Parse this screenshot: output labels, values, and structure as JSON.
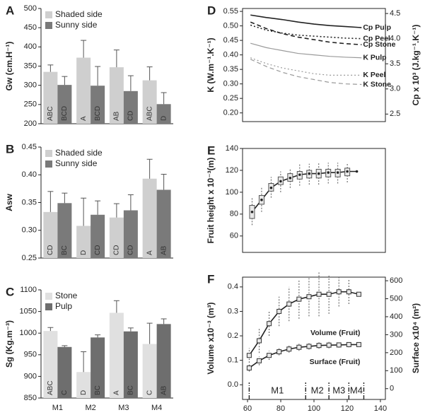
{
  "chart_data": [
    {
      "type": "bar",
      "panel": "A",
      "ylabel": "Gw (cm.H⁻¹)",
      "ylim": [
        200,
        500
      ],
      "yticks": [
        200,
        250,
        300,
        350,
        400,
        450,
        500
      ],
      "frame": false,
      "series": [
        {
          "name": "Shaded side",
          "color": "#cfcfcf",
          "values": [
            335,
            372,
            347,
            313
          ],
          "errors": [
            18,
            45,
            45,
            35
          ],
          "letters": [
            "ABC",
            "A",
            "AB",
            "ABC"
          ]
        },
        {
          "name": "Sunny side",
          "color": "#7a7a7a",
          "values": [
            301,
            299,
            285,
            251
          ],
          "errors": [
            22,
            50,
            40,
            30
          ],
          "letters": [
            "BCD",
            "BCD",
            "CD",
            "D"
          ]
        }
      ]
    },
    {
      "type": "bar",
      "panel": "B",
      "ylabel": "Asw",
      "ylim": [
        0.25,
        0.45
      ],
      "yticks": [
        0.25,
        {
          "value": 0.3,
          "label": "0.30"
        },
        0.35,
        {
          "value": 0.4,
          "label": "0.40"
        },
        0.45
      ],
      "frame": false,
      "series": [
        {
          "name": "Shaded side",
          "color": "#cfcfcf",
          "values": [
            0.333,
            0.308,
            0.323,
            0.393
          ],
          "errors": [
            0.037,
            0.05,
            0.025,
            0.035
          ],
          "letters": [
            "CD",
            "D",
            "CD",
            "A"
          ]
        },
        {
          "name": "Sunny side",
          "color": "#7a7a7a",
          "values": [
            0.349,
            0.328,
            0.336,
            0.373
          ],
          "errors": [
            0.018,
            0.025,
            0.028,
            0.028
          ],
          "letters": [
            "BC",
            "CD",
            "CD",
            "AB"
          ]
        }
      ]
    },
    {
      "type": "bar",
      "panel": "C",
      "ylabel": "Sg (Kg.m⁻³)",
      "ylim": [
        850,
        1100
      ],
      "yticks": [
        850,
        900,
        950,
        1000,
        1050,
        1100
      ],
      "frame": false,
      "categories": [
        "M1",
        "M2",
        "M3",
        "M4"
      ],
      "series": [
        {
          "name": "Stone",
          "color": "#e0e0e0",
          "values": [
            1005,
            910,
            1047,
            975
          ],
          "errors": [
            8,
            47,
            28,
            48
          ],
          "letters": [
            "ABC",
            "D",
            "A",
            "C"
          ]
        },
        {
          "name": "Pulp",
          "color": "#6e6e6e",
          "values": [
            968,
            990,
            1004,
            1021
          ],
          "errors": [
            3,
            6,
            8,
            12
          ],
          "letters": [
            "C",
            "BC",
            "BC",
            "AB"
          ]
        }
      ]
    },
    {
      "type": "line",
      "panel": "D",
      "ylabel": "K (W.m⁻¹.K⁻¹)",
      "y2label": "Cp x 10³ (J.kg⁻¹.K⁻¹)",
      "frame": true,
      "xlim": [
        55,
        145
      ],
      "ylim": [
        0.17,
        0.56
      ],
      "yticks": [
        {
          "value": 0.2,
          "label": "0.20"
        },
        0.25,
        {
          "value": 0.3,
          "label": "0.30"
        },
        0.35,
        {
          "value": 0.4,
          "label": "0.40"
        },
        0.45,
        {
          "value": 0.5,
          "label": "0.50"
        },
        0.55
      ],
      "y2lim": [
        2.35,
        4.6
      ],
      "y2ticks": [
        2.5,
        {
          "value": 3,
          "label": "3.0"
        },
        3.5,
        {
          "value": 4,
          "label": "4.0"
        },
        4.5
      ],
      "x": [
        60,
        70,
        80,
        90,
        100,
        110,
        120,
        130
      ],
      "series": [
        {
          "name": "Cp Pulp",
          "color": "#222222",
          "dash": "solid",
          "axis": "y2",
          "values": [
            4.47,
            4.42,
            4.38,
            4.33,
            4.29,
            4.26,
            4.24,
            4.22
          ]
        },
        {
          "name": "Cp Peel",
          "color": "#222222",
          "dash": "dotted",
          "axis": "y2",
          "values": [
            4.27,
            4.17,
            4.11,
            4.07,
            4.05,
            4.03,
            4.01,
            4.0
          ]
        },
        {
          "name": "Cp Stone",
          "color": "#222222",
          "dash": "dashed",
          "axis": "y2",
          "values": [
            4.33,
            4.2,
            4.1,
            4.03,
            3.98,
            3.93,
            3.9,
            3.88
          ]
        },
        {
          "name": "K Pulp",
          "color": "#9a9a9a",
          "dash": "solid",
          "axis": "y",
          "values": [
            0.44,
            0.425,
            0.415,
            0.405,
            0.4,
            0.395,
            0.392,
            0.39
          ]
        },
        {
          "name": "K Peel",
          "color": "#9a9a9a",
          "dash": "dotted",
          "axis": "y",
          "values": [
            0.39,
            0.37,
            0.355,
            0.345,
            0.335,
            0.33,
            0.33,
            0.33
          ]
        },
        {
          "name": "K Stone",
          "color": "#9a9a9a",
          "dash": "dashed",
          "axis": "y",
          "values": [
            0.385,
            0.36,
            0.34,
            0.325,
            0.315,
            0.305,
            0.3,
            0.298
          ]
        }
      ]
    },
    {
      "type": "box",
      "panel": "E",
      "ylabel": "Fruit height x 10⁻³(m)",
      "frame": true,
      "xlim": [
        55,
        145
      ],
      "ylim": [
        45,
        140
      ],
      "yticks": [
        60,
        80,
        100,
        120,
        140
      ],
      "x": [
        61,
        67,
        73,
        79,
        85,
        91,
        97,
        103,
        109,
        115,
        121,
        127
      ],
      "values": [
        82,
        93,
        104,
        110,
        113,
        116,
        117,
        117,
        118,
        118,
        119,
        119
      ],
      "q1": [
        76,
        89,
        101,
        107,
        110,
        112,
        113,
        113,
        114,
        114,
        115,
        null
      ],
      "q3": [
        88,
        97,
        108,
        114,
        117,
        119,
        120,
        121,
        121,
        121,
        122,
        null
      ],
      "low": [
        70,
        82,
        95,
        100,
        104,
        106,
        107,
        107,
        108,
        108,
        109,
        null
      ],
      "high": [
        95,
        104,
        114,
        119,
        122,
        126,
        126,
        127,
        127,
        127,
        127,
        null
      ]
    },
    {
      "type": "errorline",
      "panel": "F",
      "ylabel": "Volume x10⁻³ (m³)",
      "y2label": "Surface x10⁴ (m²)",
      "frame": true,
      "xlim": [
        57,
        143
      ],
      "xticks": [
        60,
        80,
        100,
        120,
        140
      ],
      "ylim": [
        -0.06,
        0.44
      ],
      "yticks": [
        {
          "value": 0,
          "label": "0.0"
        },
        0.1,
        0.2,
        0.3,
        0.4
      ],
      "y2lim": [
        -60,
        620
      ],
      "y2ticks": [
        0,
        100,
        200,
        300,
        400,
        500,
        600
      ],
      "x": [
        61,
        67,
        73,
        79,
        85,
        91,
        97,
        103,
        109,
        115,
        121,
        127
      ],
      "series": [
        {
          "name": "Volume (Fruit)",
          "color": "#222222",
          "axis": "y",
          "values": [
            0.12,
            0.18,
            0.25,
            0.3,
            0.33,
            0.35,
            0.36,
            0.37,
            0.37,
            0.38,
            0.38,
            0.37
          ],
          "errors": [
            0.03,
            0.05,
            0.05,
            0.06,
            0.07,
            0.08,
            0.08,
            0.09,
            0.08,
            0.06,
            0.05,
            null
          ]
        },
        {
          "name": "Surface (Fruit)",
          "color": "#222222",
          "axis": "y2",
          "values": [
            115,
            155,
            185,
            205,
            220,
            230,
            235,
            240,
            242,
            243,
            245,
            245
          ],
          "errors": [
            20,
            25,
            25,
            20,
            20,
            20,
            18,
            18,
            18,
            15,
            15,
            null
          ]
        }
      ],
      "phases": {
        "labels": [
          "M1",
          "M2",
          "M3",
          "M4"
        ],
        "bounds": [
          61,
          95,
          109,
          121,
          130
        ]
      }
    }
  ]
}
